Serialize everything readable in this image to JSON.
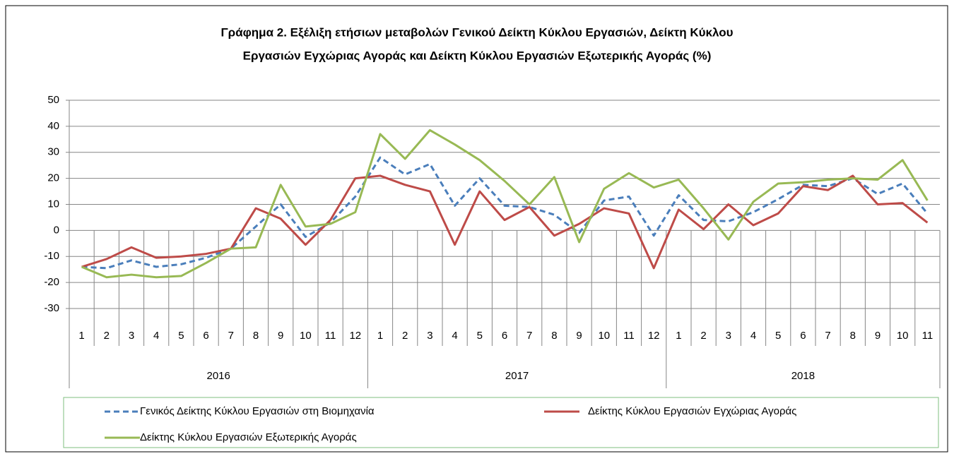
{
  "chart_data": {
    "type": "line",
    "title": [
      "Γράφημα 2. Εξέλιξη ετήσιων μεταβολών Γενικού Δείκτη Κύκλου Εργασιών,  Δείκτη Κύκλου",
      "Εργασιών Εγχώριας Αγοράς και Δείκτη Κύκλου Εργασιών Εξωτερικής Αγοράς   (%)"
    ],
    "groups": [
      {
        "label": "2016",
        "categories": [
          "1",
          "2",
          "3",
          "4",
          "5",
          "6",
          "7",
          "8",
          "9",
          "10",
          "11",
          "12"
        ]
      },
      {
        "label": "2017",
        "categories": [
          "1",
          "2",
          "3",
          "4",
          "5",
          "6",
          "7",
          "8",
          "9",
          "10",
          "11",
          "12"
        ]
      },
      {
        "label": "2018",
        "categories": [
          "1",
          "2",
          "3",
          "4",
          "5",
          "6",
          "7",
          "8",
          "9",
          "10",
          "11"
        ]
      }
    ],
    "series": [
      {
        "name": "Γενικός Δείκτης Κύκλου Εργασιών στη Βιομηχανία",
        "color": "#4a7ebb",
        "dashed": true,
        "values": [
          -14,
          -14.5,
          -11.5,
          -14,
          -13,
          -10.5,
          -7,
          1.5,
          10,
          -2.5,
          3,
          13,
          28,
          21.5,
          25.5,
          9.5,
          20,
          9.5,
          9,
          6,
          -1,
          11.5,
          13,
          -2,
          13.5,
          4,
          3.5,
          7,
          12,
          17.5,
          17,
          20,
          14,
          18,
          6.5
        ]
      },
      {
        "name": "Δείκτης Κύκλου Εργασιών Εγχώριας Αγοράς",
        "color": "#be4b48",
        "dashed": false,
        "values": [
          -14,
          -11,
          -6.5,
          -10.5,
          -10,
          -9,
          -7,
          8.5,
          4.5,
          -5.5,
          4,
          20,
          21,
          17.5,
          15,
          -5.5,
          15,
          4,
          9,
          -2,
          2.5,
          8.5,
          6.5,
          -14.5,
          8,
          0.5,
          10,
          2,
          6.5,
          17,
          15.5,
          21,
          10,
          10.5,
          3
        ]
      },
      {
        "name": "Δείκτης Κύκλου Εργασιών Εξωτερικής Αγοράς",
        "color": "#98b954",
        "dashed": false,
        "values": [
          -14,
          -18,
          -17,
          -18,
          -17.5,
          -12.5,
          -7,
          -6.5,
          17.5,
          1.5,
          2.5,
          7,
          37,
          27.5,
          38.5,
          33,
          27,
          19,
          10,
          20.5,
          -4.5,
          16,
          22,
          16.5,
          19.5,
          8.5,
          -3.5,
          11,
          18,
          18.5,
          19.5,
          20,
          19.5,
          27,
          11.5
        ]
      }
    ],
    "ylim": [
      -30,
      50
    ],
    "yticks": [
      -30,
      -20,
      -10,
      0,
      10,
      20,
      30,
      40,
      50
    ],
    "grid": true
  }
}
